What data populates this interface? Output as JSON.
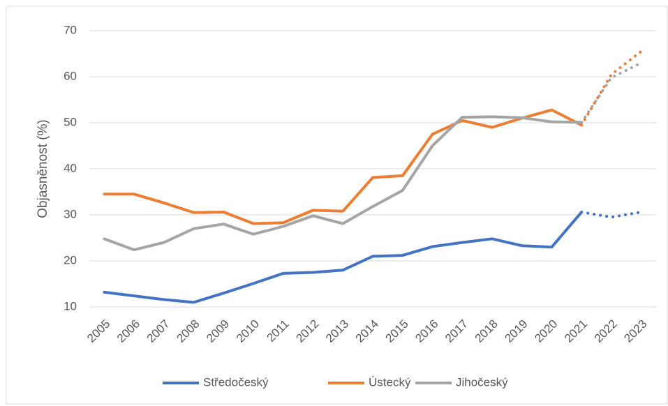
{
  "chart_data": {
    "type": "line",
    "y_label": "Objasněnost (%)",
    "categories": [
      "2005",
      "2006",
      "2007",
      "2008",
      "2009",
      "2010",
      "2011",
      "2012",
      "2013",
      "2014",
      "2015",
      "2016",
      "2017",
      "2018",
      "2019",
      "2020",
      "2021",
      "2022",
      "2023"
    ],
    "series": [
      {
        "name": "Středočeský",
        "color": "#4472c4",
        "values": [
          13.2,
          12.4,
          11.6,
          11.0,
          13.0,
          15.1,
          17.3,
          17.5,
          18.0,
          21.0,
          21.2,
          23.1,
          24.0,
          24.8,
          23.3,
          23.0,
          30.6,
          29.5,
          30.6
        ]
      },
      {
        "name": "Ústecký",
        "color": "#ed7d31",
        "values": [
          34.5,
          34.5,
          32.6,
          30.5,
          30.6,
          28.1,
          28.3,
          31.0,
          30.8,
          38.1,
          38.5,
          47.5,
          50.5,
          49.0,
          51.0,
          52.8,
          49.5,
          60.5,
          65.5
        ]
      },
      {
        "name": "Jihočeský",
        "color": "#a5a5a5",
        "values": [
          24.8,
          22.4,
          24.0,
          27.0,
          28.0,
          25.8,
          27.5,
          29.8,
          28.1,
          31.8,
          35.3,
          45.0,
          51.2,
          51.3,
          51.1,
          50.2,
          50.1,
          59.8,
          63.0
        ]
      }
    ],
    "dotted_from": "2021",
    "ylim": [
      10,
      70
    ],
    "yticks": [
      10,
      20,
      30,
      40,
      50,
      60,
      70
    ],
    "grid": true,
    "legend": "bottom"
  }
}
